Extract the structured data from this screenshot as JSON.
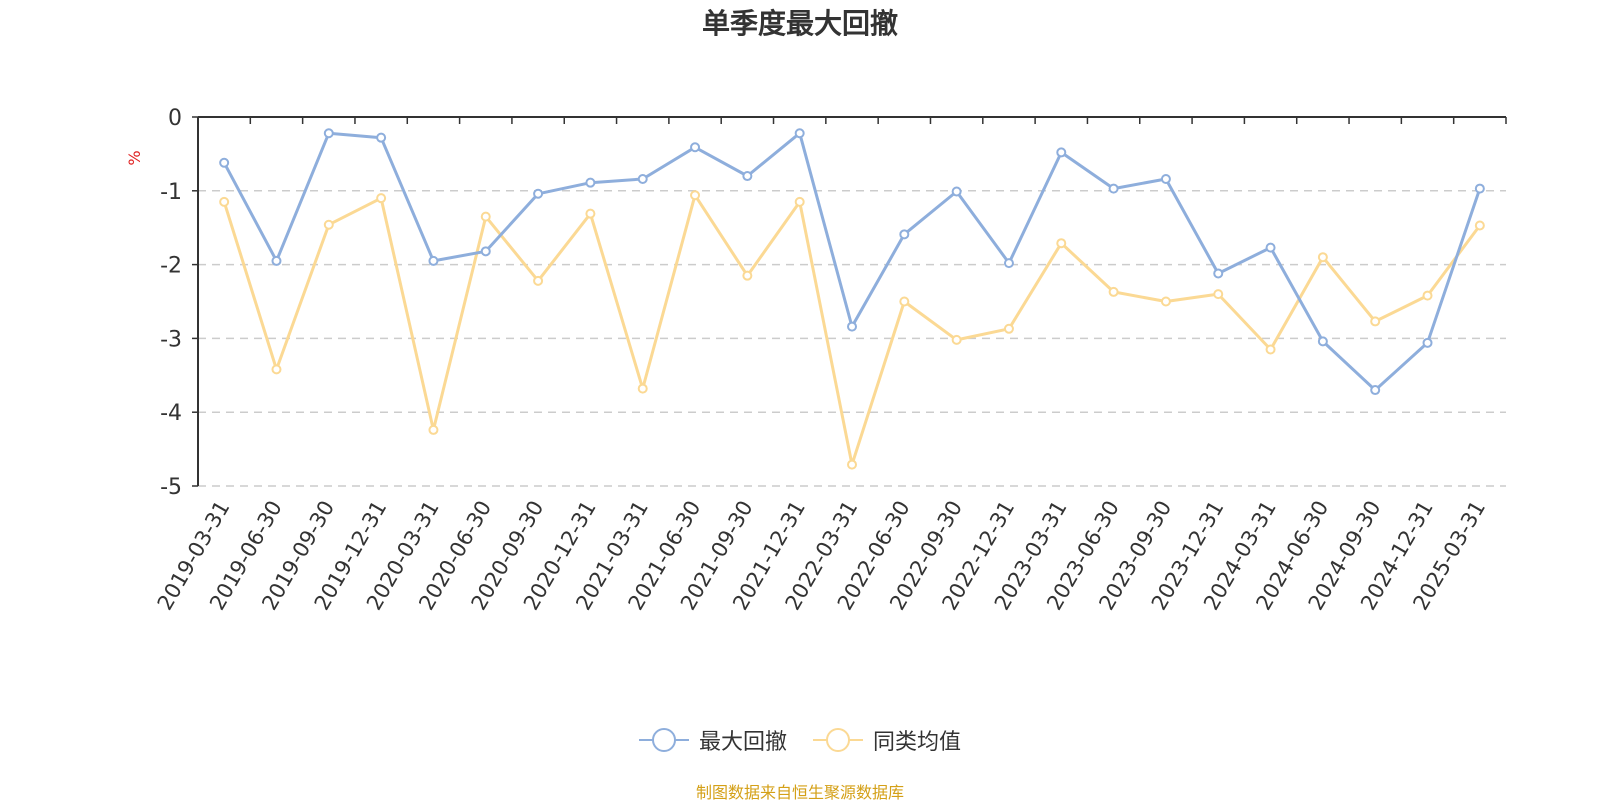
{
  "chart_data": {
    "type": "line",
    "title": "单季度最大回撤",
    "ylabel": "%",
    "ylim": [
      -5,
      0
    ],
    "yticks": [
      0,
      -1,
      -2,
      -3,
      -4,
      -5
    ],
    "grid": true,
    "legend_position": "bottom",
    "categories": [
      "2019-03-31",
      "2019-06-30",
      "2019-09-30",
      "2019-12-31",
      "2020-03-31",
      "2020-06-30",
      "2020-09-30",
      "2020-12-31",
      "2021-03-31",
      "2021-06-30",
      "2021-09-30",
      "2021-12-31",
      "2022-03-31",
      "2022-06-30",
      "2022-09-30",
      "2022-12-31",
      "2023-03-31",
      "2023-06-30",
      "2023-09-30",
      "2023-12-31",
      "2024-03-31",
      "2024-06-30",
      "2024-09-30",
      "2024-12-31",
      "2025-03-31"
    ],
    "series": [
      {
        "name": "最大回撤",
        "color": "#8eaedc",
        "values": [
          -0.62,
          -1.95,
          -0.22,
          -0.28,
          -1.95,
          -1.82,
          -1.04,
          -0.89,
          -0.84,
          -0.41,
          -0.8,
          -0.22,
          -2.84,
          -1.59,
          -1.01,
          -1.98,
          -0.48,
          -0.97,
          -0.84,
          -2.12,
          -1.77,
          -3.04,
          -3.7,
          -3.06,
          -0.97
        ]
      },
      {
        "name": "同类均值",
        "color": "#fbd994",
        "values": [
          -1.15,
          -3.42,
          -1.46,
          -1.1,
          -4.24,
          -1.35,
          -2.22,
          -1.31,
          -3.68,
          -1.06,
          -2.15,
          -1.15,
          -4.71,
          -2.5,
          -3.02,
          -2.87,
          -1.71,
          -2.37,
          -2.5,
          -2.4,
          -3.15,
          -1.9,
          -2.77,
          -2.42,
          -1.47
        ]
      }
    ]
  },
  "source_note": "制图数据来自恒生聚源数据库"
}
